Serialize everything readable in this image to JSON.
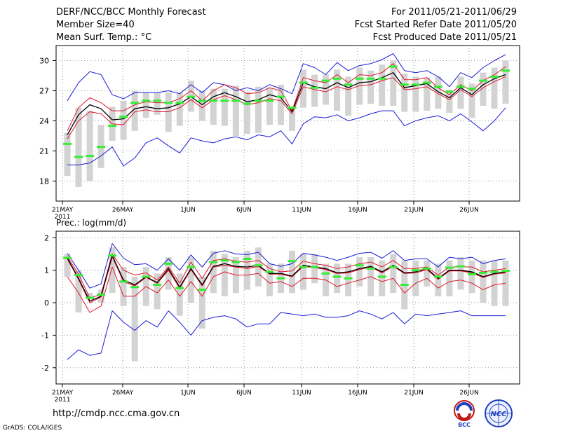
{
  "header": {
    "title": "DERF/NCC/BCC Monthly Forecast",
    "member_size": "Member Size=40",
    "variable": "Mean Surf. Temp.: °C",
    "period": "For 2011/05/21-2011/06/29",
    "started": "Fcst Started Refer Date 2011/05/20",
    "produced": "Fcst Produced Date 2011/05/21"
  },
  "footer": {
    "url": "http://cmdp.ncc.cma.gov.cn",
    "grads": "GrADS: COLA/IGES",
    "logo1": "BCC",
    "logo2": "NCC"
  },
  "colors": {
    "envelope": "#1a1ad8",
    "spread": "#e0162a",
    "ensemble_mean": "#000000",
    "median": "#33ee33",
    "box": "#d3d3d3"
  },
  "chart_data": [
    {
      "type": "box_line",
      "title": "Mean Surf. Temp.: °C",
      "ylim": [
        16,
        31.5
      ],
      "yticks": [
        18,
        21,
        24,
        27,
        30
      ],
      "xticks": [
        "21MAY\n2011",
        "26MAY",
        "1JUN",
        "6JUN",
        "11JUN",
        "16JUN",
        "21JUN",
        "26JUN"
      ],
      "days": 40,
      "series": [
        {
          "name": "max",
          "values": [
            26.0,
            27.8,
            28.9,
            28.6,
            26.6,
            26.2,
            26.8,
            26.8,
            26.8,
            27.0,
            26.7,
            27.6,
            26.8,
            27.8,
            27.6,
            27.0,
            27.3,
            27.0,
            27.6,
            27.2,
            26.7,
            29.7,
            29.3,
            28.6,
            29.8,
            29.0,
            29.5,
            29.7,
            30.1,
            30.7,
            29.0,
            28.8,
            29.0,
            28.4,
            27.4,
            28.8,
            28.3,
            29.3,
            30.0,
            30.6
          ]
        },
        {
          "name": "upper",
          "values": [
            23.0,
            25.3,
            26.3,
            25.8,
            25.0,
            25.0,
            25.6,
            25.9,
            25.8,
            25.8,
            26.2,
            27.0,
            26.0,
            27.0,
            27.6,
            27.3,
            26.7,
            26.8,
            27.3,
            27.0,
            25.0,
            28.3,
            28.0,
            27.8,
            28.6,
            27.8,
            28.6,
            28.5,
            28.8,
            29.7,
            28.1,
            28.1,
            28.3,
            27.3,
            26.6,
            27.6,
            27.0,
            28.0,
            28.6,
            29.4
          ]
        },
        {
          "name": "mean",
          "values": [
            22.6,
            24.6,
            25.6,
            25.2,
            24.1,
            24.2,
            25.2,
            25.4,
            25.2,
            25.3,
            25.7,
            26.4,
            25.6,
            26.4,
            26.8,
            26.4,
            25.9,
            26.1,
            26.6,
            26.3,
            24.9,
            27.8,
            27.4,
            27.2,
            27.8,
            27.3,
            27.8,
            27.9,
            28.3,
            28.8,
            27.3,
            27.5,
            27.7,
            26.9,
            26.3,
            27.3,
            26.6,
            27.6,
            28.2,
            28.6
          ]
        },
        {
          "name": "lower",
          "values": [
            22.2,
            24.0,
            24.9,
            24.7,
            23.7,
            23.6,
            24.9,
            25.1,
            24.9,
            24.9,
            25.3,
            26.1,
            25.3,
            26.1,
            26.5,
            26.1,
            25.6,
            25.8,
            26.2,
            26.0,
            24.7,
            27.4,
            27.1,
            26.9,
            27.4,
            27.1,
            27.5,
            27.6,
            28.0,
            28.3,
            27.1,
            27.2,
            27.4,
            26.7,
            26.1,
            27.1,
            26.4,
            27.3,
            27.9,
            28.4
          ]
        },
        {
          "name": "min",
          "values": [
            19.6,
            19.6,
            19.8,
            20.5,
            21.4,
            19.5,
            20.3,
            21.8,
            22.3,
            21.5,
            20.8,
            22.3,
            22.0,
            21.8,
            22.2,
            22.4,
            22.1,
            22.6,
            22.4,
            23.0,
            21.7,
            23.7,
            24.4,
            24.3,
            24.6,
            24.0,
            24.3,
            24.7,
            25.0,
            25.0,
            23.5,
            24.0,
            24.3,
            24.5,
            24.0,
            24.7,
            23.9,
            23.0,
            24.0,
            25.3
          ]
        },
        {
          "name": "median",
          "values": [
            21.7,
            20.4,
            20.5,
            21.4,
            23.5,
            24.4,
            25.8,
            26.0,
            26.0,
            25.8,
            25.8,
            26.4,
            26.0,
            26.0,
            26.0,
            26.0,
            25.7,
            26.0,
            26.0,
            26.4,
            25.3,
            27.8,
            27.3,
            28.0,
            28.2,
            27.6,
            28.2,
            28.2,
            28.2,
            29.4,
            27.6,
            27.6,
            27.8,
            27.4,
            26.9,
            27.4,
            27.2,
            28.0,
            28.4,
            29.0
          ]
        },
        {
          "name": "box_low",
          "values": [
            18.5,
            17.4,
            18.0,
            19.3,
            22.0,
            22.1,
            23.0,
            24.3,
            24.6,
            22.9,
            23.5,
            24.9,
            24.0,
            23.6,
            23.5,
            22.5,
            22.7,
            22.8,
            23.6,
            23.6,
            23.0,
            25.3,
            25.4,
            25.6,
            25.0,
            24.5,
            25.6,
            25.7,
            25.5,
            25.5,
            24.9,
            24.9,
            25.0,
            25.2,
            24.8,
            25.2,
            24.3,
            25.5,
            25.2,
            25.7
          ]
        },
        {
          "name": "box_high",
          "values": [
            22.8,
            25.3,
            25.0,
            23.6,
            25.4,
            26.0,
            27.0,
            26.8,
            26.8,
            26.8,
            26.8,
            28.0,
            27.0,
            27.2,
            27.2,
            27.5,
            26.9,
            27.4,
            27.3,
            27.6,
            25.3,
            29.1,
            28.6,
            28.6,
            29.1,
            28.4,
            29.3,
            29.0,
            29.6,
            30.0,
            28.7,
            28.4,
            28.3,
            28.4,
            27.1,
            28.4,
            27.7,
            28.8,
            29.3,
            30.0
          ]
        }
      ]
    },
    {
      "type": "box_line",
      "title": "Prec.: log(mm/d)",
      "ylim": [
        -2.5,
        2.2
      ],
      "yticks": [
        -2,
        -1,
        0,
        1,
        2
      ],
      "xticks": [
        "21MAY\n2011",
        "26MAY",
        "1JUN",
        "6JUN",
        "11JUN",
        "16JUN",
        "21JUN",
        "26JUN"
      ],
      "days": 40,
      "series": [
        {
          "name": "max",
          "values": [
            1.52,
            1.0,
            0.45,
            0.58,
            1.82,
            1.37,
            1.17,
            1.2,
            1.0,
            1.35,
            1.0,
            1.47,
            1.1,
            1.52,
            1.6,
            1.5,
            1.48,
            1.55,
            1.2,
            1.12,
            1.2,
            1.52,
            1.47,
            1.4,
            1.3,
            1.4,
            1.52,
            1.55,
            1.37,
            1.6,
            1.3,
            1.35,
            1.35,
            1.1,
            1.4,
            1.35,
            1.4,
            1.2,
            1.3,
            1.35
          ]
        },
        {
          "name": "upper",
          "values": [
            1.42,
            0.88,
            0.15,
            0.25,
            1.5,
            1.0,
            0.85,
            0.92,
            0.7,
            1.1,
            0.6,
            1.25,
            0.75,
            1.3,
            1.35,
            1.28,
            1.25,
            1.3,
            1.05,
            0.95,
            0.98,
            1.28,
            1.2,
            1.15,
            1.05,
            1.1,
            1.2,
            1.25,
            1.1,
            1.3,
            1.05,
            1.05,
            1.1,
            0.85,
            1.1,
            1.1,
            1.1,
            0.95,
            1.0,
            1.05
          ]
        },
        {
          "name": "mean",
          "values": [
            1.38,
            0.75,
            0.05,
            0.2,
            1.45,
            0.7,
            0.55,
            0.8,
            0.62,
            1.05,
            0.48,
            1.05,
            0.55,
            1.12,
            1.2,
            1.12,
            1.1,
            1.15,
            0.9,
            0.9,
            0.82,
            1.15,
            1.1,
            1.05,
            0.92,
            0.95,
            1.05,
            1.12,
            0.95,
            1.15,
            0.92,
            0.95,
            1.05,
            0.75,
            1.0,
            1.0,
            0.95,
            0.8,
            0.9,
            0.95
          ]
        },
        {
          "name": "lower",
          "values": [
            1.35,
            0.72,
            0.0,
            0.18,
            1.42,
            0.65,
            0.52,
            0.78,
            0.6,
            1.0,
            0.45,
            1.02,
            0.52,
            1.1,
            1.15,
            1.1,
            1.05,
            1.12,
            0.88,
            0.88,
            0.8,
            1.12,
            1.08,
            1.02,
            0.9,
            0.92,
            1.02,
            1.1,
            0.92,
            1.12,
            0.9,
            0.92,
            1.02,
            0.72,
            0.98,
            0.98,
            0.92,
            0.78,
            0.88,
            0.92
          ]
        },
        {
          "name": "spread_low",
          "values": [
            0.8,
            0.3,
            -0.3,
            -0.1,
            1.1,
            0.2,
            0.2,
            0.5,
            0.3,
            0.7,
            0.2,
            0.65,
            0.2,
            0.8,
            0.95,
            0.85,
            0.85,
            0.9,
            0.6,
            0.65,
            0.5,
            0.75,
            0.75,
            0.7,
            0.5,
            0.6,
            0.7,
            0.8,
            0.65,
            0.75,
            0.3,
            0.6,
            0.75,
            0.45,
            0.65,
            0.7,
            0.6,
            0.4,
            0.55,
            0.6
          ]
        },
        {
          "name": "min",
          "values": [
            -1.75,
            -1.45,
            -1.62,
            -1.55,
            -0.25,
            -0.6,
            -0.85,
            -0.55,
            -0.75,
            -0.25,
            -0.6,
            -1.0,
            -0.55,
            -0.45,
            -0.4,
            -0.5,
            -0.75,
            -0.65,
            -0.65,
            -0.3,
            -0.35,
            -0.4,
            -0.35,
            -0.45,
            -0.45,
            -0.4,
            -0.25,
            -0.35,
            -0.5,
            -0.3,
            -0.65,
            -0.35,
            -0.4,
            -0.35,
            -0.3,
            -0.25,
            -0.4,
            -0.4,
            -0.4,
            -0.4
          ]
        },
        {
          "name": "median",
          "values": [
            1.38,
            0.85,
            0.15,
            0.25,
            1.45,
            0.65,
            0.48,
            0.8,
            0.55,
            1.2,
            0.45,
            1.1,
            0.4,
            1.25,
            1.3,
            1.25,
            1.35,
            1.15,
            0.95,
            0.75,
            1.28,
            1.1,
            1.1,
            0.9,
            0.8,
            0.75,
            1.15,
            1.05,
            0.8,
            1.1,
            0.55,
            1.0,
            1.05,
            0.8,
            1.08,
            1.12,
            0.88,
            0.92,
            0.95,
            0.98
          ]
        },
        {
          "name": "box_low",
          "values": [
            0.8,
            -0.3,
            0.1,
            0.0,
            0.3,
            -0.1,
            -1.8,
            -0.1,
            -0.2,
            0.4,
            -0.4,
            0.0,
            -0.8,
            0.3,
            0.2,
            0.3,
            0.4,
            0.5,
            0.2,
            0.3,
            0.3,
            0.4,
            0.6,
            0.2,
            0.3,
            0.2,
            0.5,
            0.2,
            0.2,
            0.3,
            -0.2,
            0.2,
            0.5,
            0.2,
            0.2,
            0.4,
            0.3,
            0.0,
            -0.1,
            -0.1
          ]
        },
        {
          "name": "box_high",
          "values": [
            1.5,
            1.0,
            0.3,
            0.4,
            1.7,
            1.1,
            0.8,
            1.1,
            0.9,
            1.4,
            0.9,
            1.4,
            0.8,
            1.6,
            1.5,
            1.4,
            1.6,
            1.7,
            1.2,
            1.2,
            1.6,
            1.5,
            1.5,
            1.2,
            1.2,
            1.2,
            1.4,
            1.4,
            1.3,
            1.5,
            1.3,
            1.3,
            1.3,
            1.2,
            1.3,
            1.4,
            1.3,
            1.3,
            1.3,
            1.3
          ]
        }
      ]
    }
  ]
}
